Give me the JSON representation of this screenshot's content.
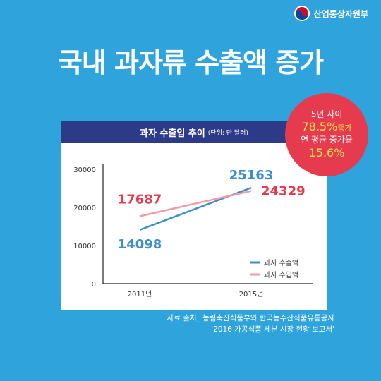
{
  "logo": {
    "text": "산업통상자원부"
  },
  "headline": "국내 과자류 수출액 증가",
  "badge": {
    "line1": "5년 사이",
    "value1": "78.5%",
    "value1_suffix": "증가",
    "line3": "연 평균 증가율",
    "value2": "15.6%"
  },
  "source": {
    "line1": "자료 출처_ 농림축산식품부와 한국농수산식품유통공사",
    "line2": "'2016 가공식품 세분 시장 현황 보고서'"
  },
  "colors": {
    "background": "#2fa3dc",
    "header": "#2c3a87",
    "export": "#3a8fca",
    "import": "#f19aa6",
    "import_label": "#e63b4e",
    "badge": "#e63b4e",
    "badge_accent": "#fbe04e"
  },
  "chart_data": {
    "type": "line",
    "title": "과자 수출입 추이",
    "unit": "(단위: 만 달러)",
    "categories": [
      "2011년",
      "2015년"
    ],
    "series": [
      {
        "name": "과자 수출액",
        "values": [
          14098,
          25163
        ],
        "color": "#3a8fca",
        "label_color": "#3a8fca"
      },
      {
        "name": "과자 수입액",
        "values": [
          17687,
          24329
        ],
        "color": "#f19aa6",
        "label_color": "#e63b4e"
      }
    ],
    "ylim": [
      0,
      30000
    ],
    "yticks": [
      "0",
      "10000",
      "20000",
      "30000"
    ],
    "grid": false,
    "legend": "bottom-right"
  }
}
